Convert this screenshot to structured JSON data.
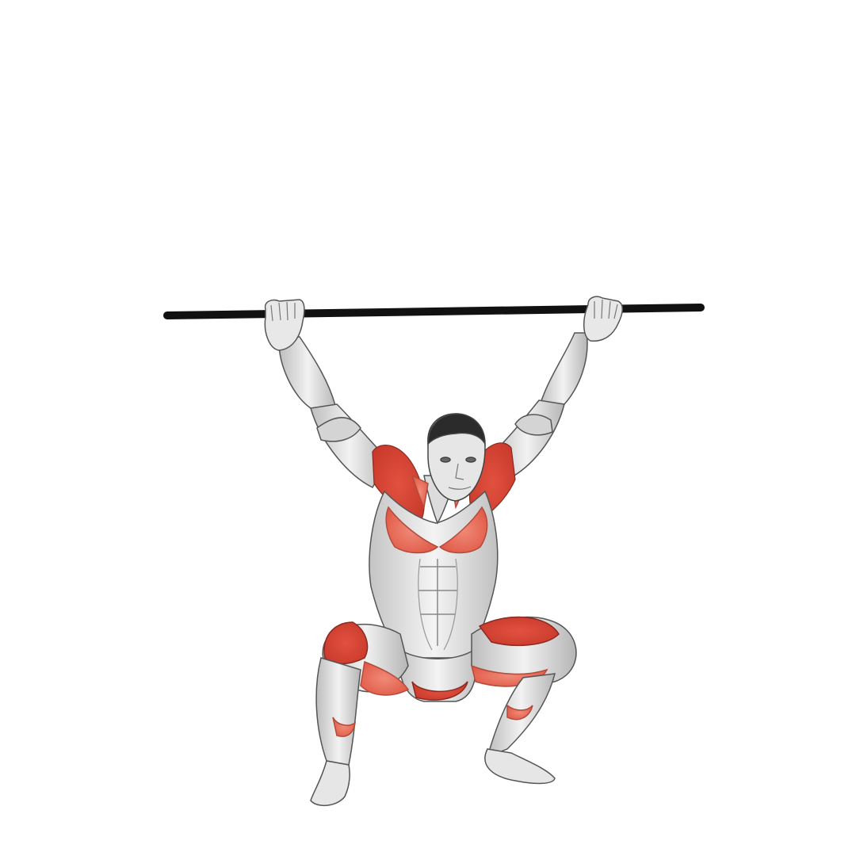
{
  "illustration": {
    "subject": "overhead-squat-with-bar",
    "colors": {
      "background": "#ffffff",
      "bar": "#111111",
      "muscle_neutral": "#dedede",
      "muscle_shade": "#9a9a9a",
      "outline": "#4a4a4a",
      "highlight_primary": "#e2513f",
      "highlight_secondary": "#f08a78",
      "skin": "#e8e8e8",
      "hair": "#2b2b2b"
    },
    "highlighted_muscles": [
      "deltoids",
      "trapezius",
      "pectorals",
      "quadriceps",
      "adductors",
      "calves"
    ]
  }
}
